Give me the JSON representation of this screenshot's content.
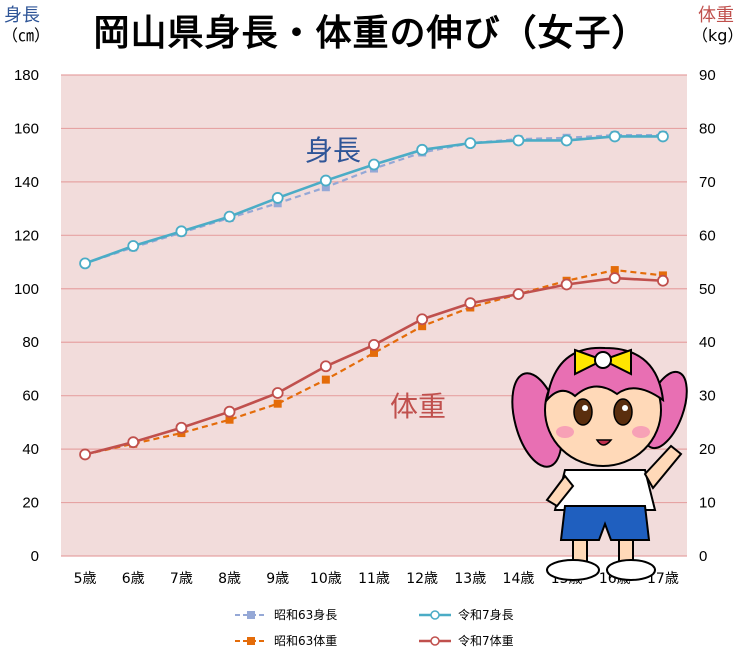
{
  "title": "岡山県身長・体重の伸び（女子）",
  "left_axis": {
    "label": "身長",
    "unit": "（㎝）"
  },
  "right_axis": {
    "label": "体重",
    "unit": "（kg）"
  },
  "series_labels": {
    "height": "身長",
    "weight": "体重"
  },
  "colors": {
    "background": "#f2dcdb",
    "grid": "#e6a3a3",
    "height_r7": "#4bacc6",
    "height_s63": "#95a8d6",
    "weight_r7": "#c0504d",
    "weight_s63": "#e46c0a",
    "height_text": "#2f5597",
    "weight_text": "#c0504d"
  },
  "chart_data": {
    "type": "line",
    "categories": [
      "5歳",
      "6歳",
      "7歳",
      "8歳",
      "9歳",
      "10歳",
      "11歳",
      "12歳",
      "13歳",
      "14歳",
      "15歳",
      "16歳",
      "17歳"
    ],
    "y_left": {
      "label": "身長（㎝）",
      "lim": [
        0,
        180
      ],
      "ticks": [
        0,
        20,
        40,
        60,
        80,
        100,
        120,
        140,
        160,
        180
      ]
    },
    "y_right": {
      "label": "体重（kg）",
      "lim": [
        0,
        90
      ],
      "ticks": [
        0,
        10,
        20,
        30,
        40,
        50,
        60,
        70,
        80,
        90
      ]
    },
    "grid": true,
    "legend_position": "bottom",
    "series": [
      {
        "name": "昭和63身長",
        "axis": "left",
        "style": "dashed",
        "marker": "square",
        "values": [
          109.5,
          115.5,
          121.0,
          126.5,
          132.0,
          138.0,
          145.0,
          151.0,
          154.5,
          156.0,
          156.5,
          157.5,
          157.5
        ]
      },
      {
        "name": "令和7身長",
        "axis": "left",
        "style": "solid",
        "marker": "circle",
        "values": [
          109.5,
          116.0,
          121.5,
          127.0,
          134.0,
          140.5,
          146.5,
          152.0,
          154.5,
          155.5,
          155.5,
          157.0,
          157.0
        ]
      },
      {
        "name": "昭和63体重",
        "axis": "right",
        "style": "dashed",
        "marker": "square",
        "values": [
          19.0,
          21.0,
          23.0,
          25.5,
          28.5,
          33.0,
          38.0,
          43.0,
          46.5,
          49.0,
          51.5,
          53.5,
          52.5
        ]
      },
      {
        "name": "令和7体重",
        "axis": "right",
        "style": "solid",
        "marker": "circle",
        "values": [
          19.0,
          21.3,
          24.0,
          27.0,
          30.5,
          35.5,
          39.5,
          44.3,
          47.3,
          49.0,
          50.8,
          52.0,
          51.5
        ]
      }
    ]
  },
  "legend": [
    {
      "name": "昭和63身長"
    },
    {
      "name": "令和7身長"
    },
    {
      "name": "昭和63体重"
    },
    {
      "name": "令和7体重"
    }
  ]
}
